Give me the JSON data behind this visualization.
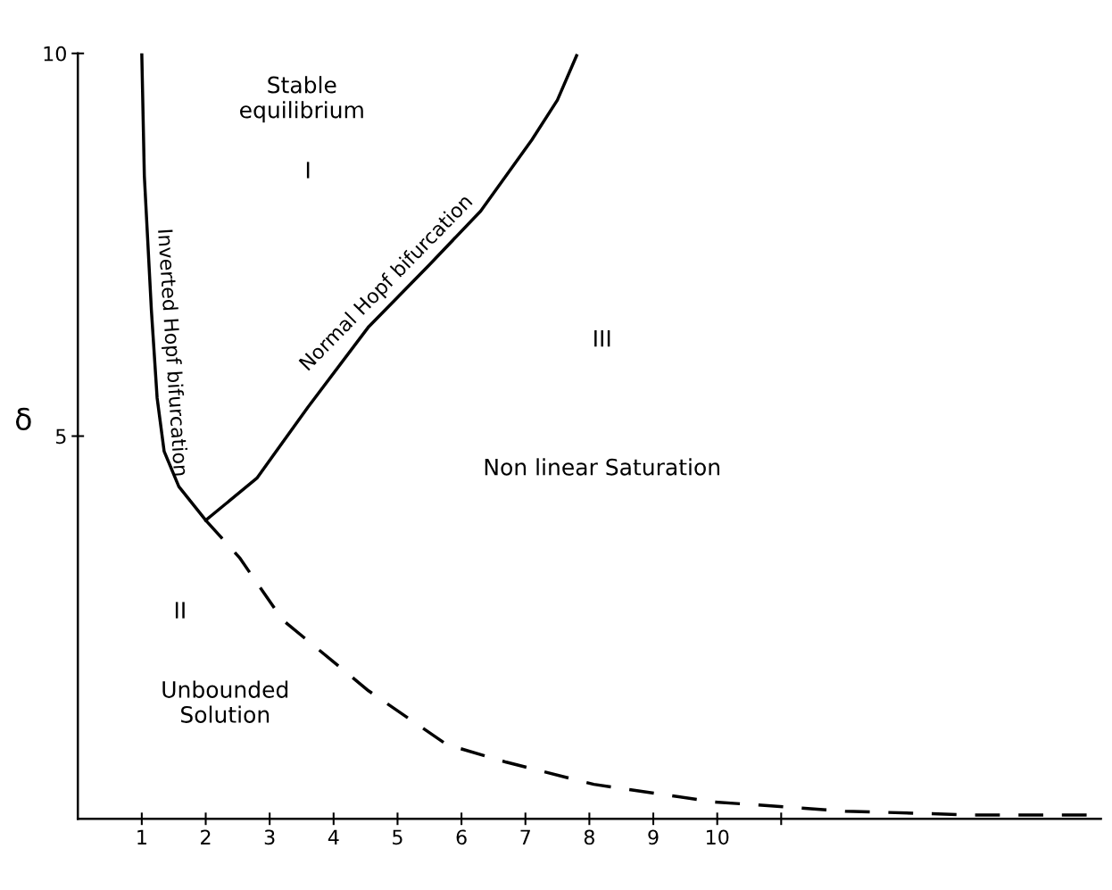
{
  "chart_data": {
    "type": "line",
    "ylabel": "δ",
    "xlim": [
      0,
      16
    ],
    "ylim": [
      0,
      10
    ],
    "xticks": [
      1,
      2,
      3,
      4,
      5,
      6,
      7,
      8,
      9,
      10,
      {
        "value": 11,
        "label": null
      }
    ],
    "yticks": [
      5,
      10
    ],
    "grid": false,
    "legend": false,
    "series": [
      {
        "name": "Inverted Hopf bifurcation",
        "color": "#000000",
        "line_style": "solid",
        "x": [
          1.0,
          1.04,
          1.15,
          1.24,
          1.35,
          1.58,
          2.0
        ],
        "values": [
          10.0,
          8.4,
          6.65,
          5.5,
          4.8,
          4.34,
          3.9
        ]
      },
      {
        "name": "Normal Hopf bifurcation",
        "color": "#000000",
        "line_style": "solid",
        "x": [
          2.0,
          2.8,
          3.6,
          4.55,
          5.5,
          6.3,
          7.1,
          7.5,
          7.8
        ],
        "values": [
          3.9,
          4.45,
          5.38,
          6.43,
          7.24,
          7.94,
          8.87,
          9.39,
          9.97
        ]
      },
      {
        "color": "#000000",
        "line_style": "dashed",
        "x": [
          2.0,
          2.53,
          3.2,
          4.55,
          5.77,
          6.7,
          8.07,
          9.96,
          12.0,
          14.0,
          15.9
        ],
        "values": [
          3.9,
          3.41,
          2.6,
          1.67,
          0.97,
          0.74,
          0.45,
          0.22,
          0.1,
          0.05,
          0.05
        ]
      }
    ],
    "annotations": [
      "Stable\nequilibrium",
      "I",
      "III",
      "Non linear Saturation",
      "II",
      "Unbounded\nSolution"
    ]
  }
}
